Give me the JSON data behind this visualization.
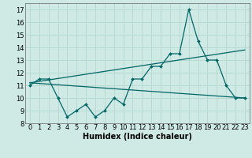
{
  "title": "",
  "xlabel": "Humidex (Indice chaleur)",
  "ylabel": "",
  "bg_color": "#cfe9e5",
  "line_color": "#006666",
  "xlim": [
    -0.5,
    23.5
  ],
  "ylim": [
    8,
    17.5
  ],
  "xticks": [
    0,
    1,
    2,
    3,
    4,
    5,
    6,
    7,
    8,
    9,
    10,
    11,
    12,
    13,
    14,
    15,
    16,
    17,
    18,
    19,
    20,
    21,
    22,
    23
  ],
  "yticks": [
    8,
    9,
    10,
    11,
    12,
    13,
    14,
    15,
    16,
    17
  ],
  "series1_x": [
    0,
    1,
    2,
    3,
    4,
    5,
    6,
    7,
    8,
    9,
    10,
    11,
    12,
    13,
    14,
    15,
    16,
    17,
    18,
    19,
    20,
    21,
    22,
    23
  ],
  "series1_y": [
    11,
    11.5,
    11.5,
    10,
    8.5,
    9,
    9.5,
    8.5,
    9,
    10,
    9.5,
    11.5,
    11.5,
    12.5,
    12.5,
    13.5,
    13.5,
    17,
    14.5,
    13,
    13,
    11,
    10,
    10
  ],
  "series2_x": [
    0,
    23
  ],
  "series2_y": [
    11.2,
    13.8
  ],
  "series3_x": [
    0,
    23
  ],
  "series3_y": [
    11.2,
    10.0
  ],
  "grid_color": "#b8d8d2",
  "font_size": 6,
  "xlabel_font_size": 7
}
